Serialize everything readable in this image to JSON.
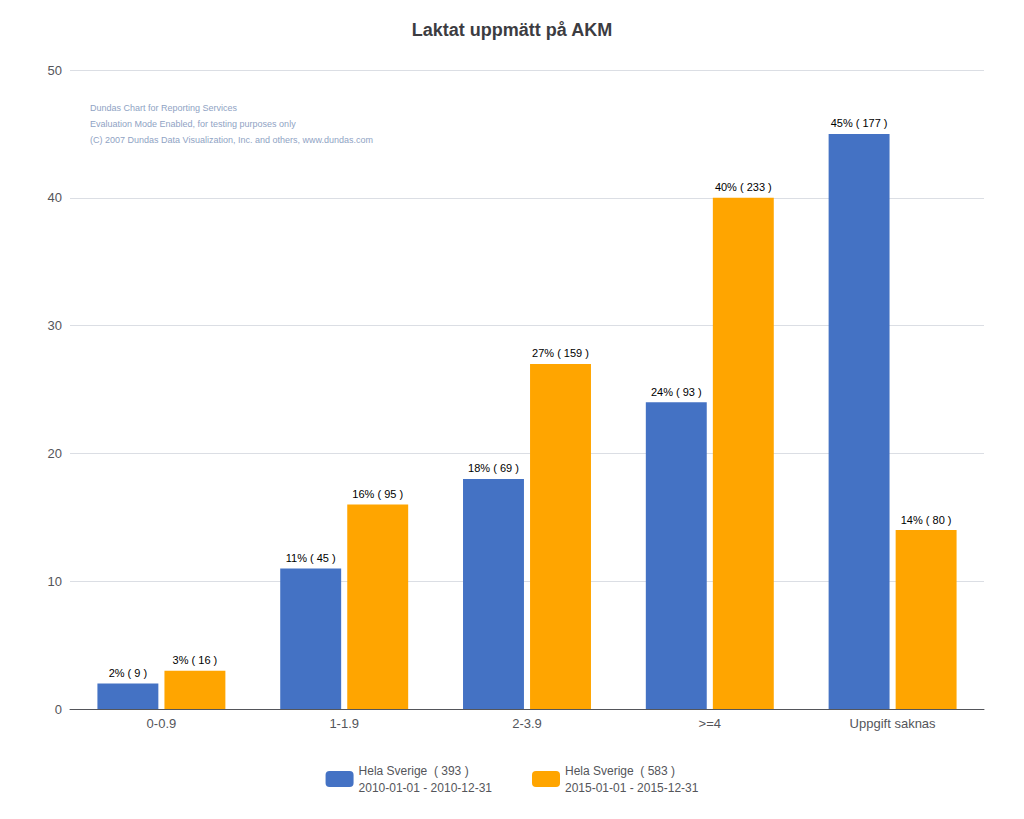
{
  "chart_data": {
    "type": "bar",
    "title": "Laktat uppmätt på AKM",
    "categories": [
      "0-0.9",
      "1-1.9",
      "2-3.9",
      ">=4",
      "Uppgift saknas"
    ],
    "series": [
      {
        "name": "Hela Sverige  ( 393 )\n2010-01-01 - 2010-12-31",
        "color": "#4472C4",
        "values": [
          2,
          11,
          18,
          24,
          45
        ],
        "value_labels": [
          "2% ( 9 )",
          "11% ( 45 )",
          "18% ( 69 )",
          "24% ( 93 )",
          "45% ( 177 )"
        ]
      },
      {
        "name": "Hela Sverige  ( 583 )\n2015-01-01 - 2015-12-31",
        "color": "#FFA500",
        "values": [
          3,
          16,
          27,
          40,
          14
        ],
        "value_labels": [
          "3% ( 16 )",
          "16% ( 95 )",
          "27% ( 159 )",
          "40% ( 233 )",
          "14% ( 80 )"
        ]
      }
    ],
    "ylim": [
      0,
      50
    ],
    "yticks": [
      0,
      10,
      20,
      30,
      40,
      50
    ],
    "grid": true,
    "legend": "bottom",
    "data_labels": true,
    "annotations": [
      "Dundas Chart for Reporting Services",
      "Evaluation Mode Enabled, for testing purposes only",
      "(C) 2007 Dundas Data Visualization, Inc. and others, www.dundas.com"
    ]
  }
}
